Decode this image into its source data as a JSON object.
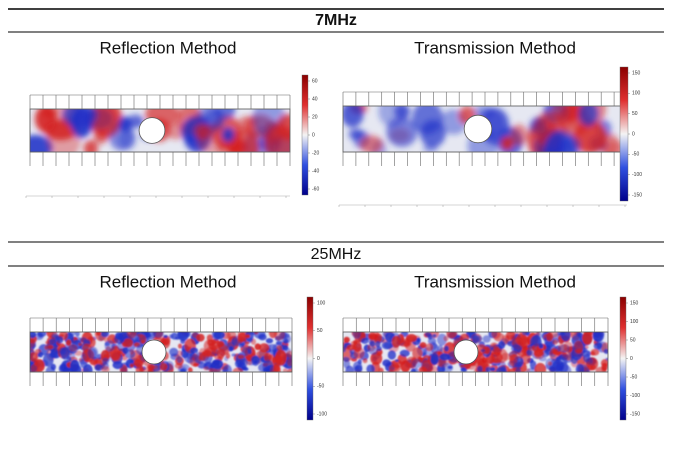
{
  "sections": [
    {
      "title": "7MHz",
      "panels": [
        {
          "title": "Reflection Method",
          "colorbar_ticks": [
            60,
            40,
            20,
            0,
            -20,
            -40,
            -60
          ]
        },
        {
          "title": "Transmission Method",
          "colorbar_ticks": [
            150,
            100,
            50,
            0,
            -50,
            -100,
            -150
          ]
        }
      ]
    },
    {
      "title": "25MHz",
      "panels": [
        {
          "title": "Reflection Method",
          "colorbar_ticks": [
            100,
            50,
            0,
            -50,
            -100
          ]
        },
        {
          "title": "Transmission Method",
          "colorbar_ticks": [
            150,
            100,
            50,
            0,
            -50,
            -100,
            -150
          ]
        }
      ]
    }
  ]
}
